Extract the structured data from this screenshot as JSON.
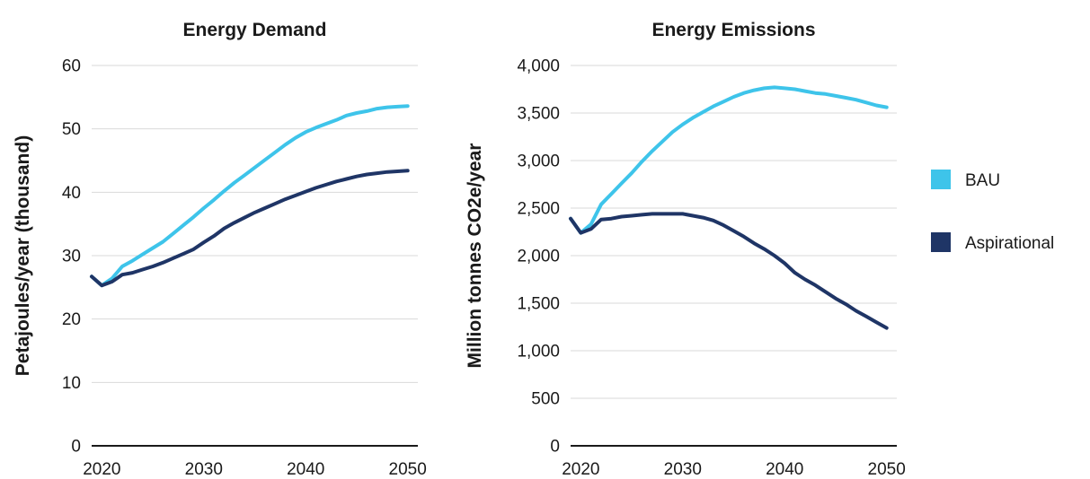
{
  "chart_data": [
    {
      "type": "line",
      "title": "Energy Demand",
      "xlabel": "",
      "ylabel": "Petajoules/year (thousand)",
      "xlim": [
        2019,
        2051
      ],
      "ylim": [
        0,
        60
      ],
      "yticks": [
        0,
        10,
        20,
        30,
        40,
        50,
        60
      ],
      "ytick_labels": [
        "0",
        "10",
        "20",
        "30",
        "40",
        "50",
        "60"
      ],
      "xticks": [
        2020,
        2030,
        2040,
        2050
      ],
      "xtick_labels": [
        "2020",
        "2030",
        "2040",
        "2050"
      ],
      "grid": true,
      "x": [
        2019,
        2020,
        2021,
        2022,
        2023,
        2024,
        2025,
        2026,
        2027,
        2028,
        2029,
        2030,
        2031,
        2032,
        2033,
        2034,
        2035,
        2036,
        2037,
        2038,
        2039,
        2040,
        2041,
        2042,
        2043,
        2044,
        2045,
        2046,
        2047,
        2048,
        2049,
        2050
      ],
      "series": [
        {
          "name": "BAU",
          "values": [
            26.7,
            25.3,
            26.4,
            28.3,
            29.2,
            30.2,
            31.2,
            32.2,
            33.5,
            34.8,
            36.1,
            37.5,
            38.8,
            40.2,
            41.5,
            42.7,
            43.9,
            45.1,
            46.3,
            47.5,
            48.6,
            49.5,
            50.2,
            50.8,
            51.4,
            52.1,
            52.5,
            52.8,
            53.2,
            53.4,
            53.5,
            53.6
          ]
        },
        {
          "name": "Aspirational",
          "values": [
            26.7,
            25.3,
            25.9,
            27.0,
            27.3,
            27.8,
            28.3,
            28.9,
            29.6,
            30.3,
            31.0,
            32.1,
            33.1,
            34.3,
            35.2,
            36.0,
            36.8,
            37.5,
            38.2,
            38.9,
            39.5,
            40.1,
            40.7,
            41.2,
            41.7,
            42.1,
            42.5,
            42.8,
            43.0,
            43.2,
            43.3,
            43.4
          ]
        }
      ]
    },
    {
      "type": "line",
      "title": "Energy Emissions",
      "xlabel": "",
      "ylabel": "Million tonnes CO2e/year",
      "xlim": [
        2019,
        2051
      ],
      "ylim": [
        0,
        4000
      ],
      "yticks": [
        0,
        500,
        1000,
        1500,
        2000,
        2500,
        3000,
        3500,
        4000
      ],
      "ytick_labels": [
        "0",
        "500",
        "1,000",
        "1,500",
        "2,000",
        "2,500",
        "3,000",
        "3,500",
        "4,000"
      ],
      "xticks": [
        2020,
        2030,
        2040,
        2050
      ],
      "xtick_labels": [
        "2020",
        "2030",
        "2040",
        "2050"
      ],
      "grid": true,
      "x": [
        2019,
        2020,
        2021,
        2022,
        2023,
        2024,
        2025,
        2026,
        2027,
        2028,
        2029,
        2030,
        2031,
        2032,
        2033,
        2034,
        2035,
        2036,
        2037,
        2038,
        2039,
        2040,
        2041,
        2042,
        2043,
        2044,
        2045,
        2046,
        2047,
        2048,
        2049,
        2050
      ],
      "series": [
        {
          "name": "BAU",
          "values": [
            2390,
            2240,
            2330,
            2540,
            2650,
            2760,
            2870,
            2990,
            3100,
            3200,
            3300,
            3380,
            3450,
            3510,
            3570,
            3620,
            3670,
            3710,
            3740,
            3760,
            3770,
            3760,
            3750,
            3730,
            3710,
            3700,
            3680,
            3660,
            3640,
            3610,
            3580,
            3560
          ]
        },
        {
          "name": "Aspirational",
          "values": [
            2390,
            2240,
            2280,
            2380,
            2390,
            2410,
            2420,
            2430,
            2440,
            2440,
            2440,
            2440,
            2420,
            2400,
            2370,
            2320,
            2260,
            2200,
            2130,
            2070,
            2000,
            1920,
            1820,
            1750,
            1690,
            1620,
            1550,
            1490,
            1420,
            1360,
            1300,
            1240
          ]
        }
      ]
    }
  ],
  "legend": {
    "position": "right",
    "items": [
      {
        "label": "BAU",
        "color": "#3ec4ea"
      },
      {
        "label": "Aspirational",
        "color": "#1f3566"
      }
    ]
  },
  "colors": {
    "axis": "#1a1a1a",
    "grid": "#d9d9d9",
    "bau": "#3ec4ea",
    "aspirational": "#1f3566"
  }
}
